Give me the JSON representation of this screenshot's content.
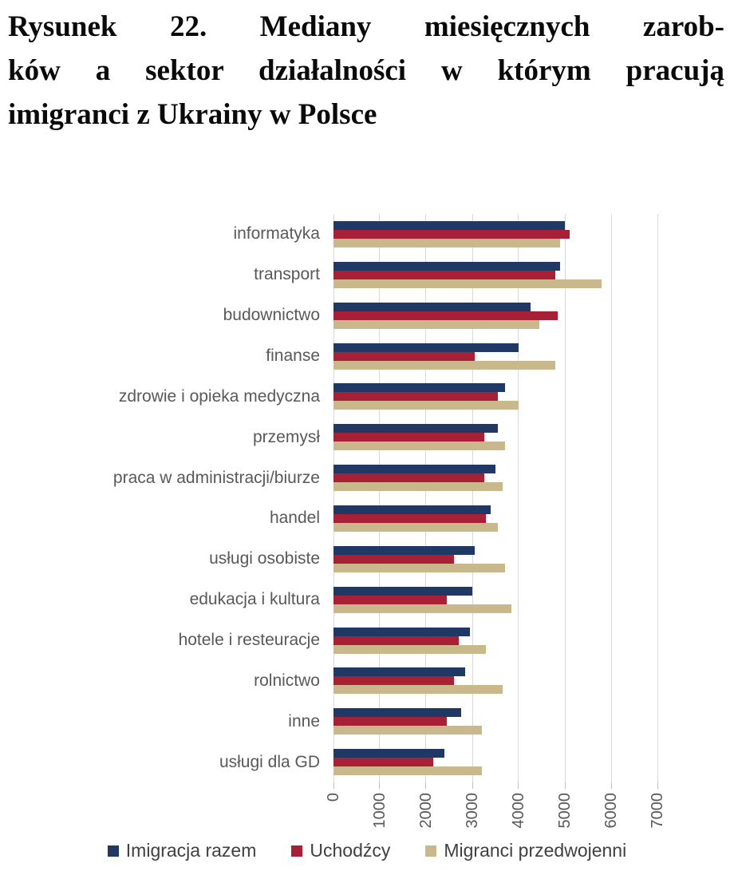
{
  "title_lines": [
    "Rysunek 22. Mediany miesięcznych zarob-",
    "ków a sektor działalności w którym pracują",
    "imigranci z Ukrainy w Polsce"
  ],
  "chart_data": {
    "type": "bar",
    "orientation": "horizontal",
    "title": "Mediany miesięcznych zarobków a sektor działalności w którym pracują imigranci z Ukrainy w Polsce",
    "categories": [
      "informatyka",
      "transport",
      "budownictwo",
      "finanse",
      "zdrowie i opieka medyczna",
      "przemysł",
      "praca w administracji/biurze",
      "handel",
      "usługi osobiste",
      "edukacja i kultura",
      "hotele i resteuracje",
      "rolnictwo",
      "inne",
      "usługi dla GD"
    ],
    "series": [
      {
        "name": "Imigracja razem",
        "color": "#1f3864",
        "values": [
          5000,
          4900,
          4250,
          4000,
          3700,
          3550,
          3500,
          3400,
          3050,
          3000,
          2950,
          2850,
          2750,
          2400
        ]
      },
      {
        "name": "Uchodźcy",
        "color": "#a72035",
        "values": [
          5100,
          4800,
          4850,
          3050,
          3550,
          3250,
          3250,
          3300,
          2600,
          2450,
          2700,
          2600,
          2450,
          2150
        ]
      },
      {
        "name": "Migranci przedwojenni",
        "color": "#c8b88b",
        "values": [
          4900,
          5800,
          4450,
          4800,
          4000,
          3700,
          3650,
          3550,
          3700,
          3850,
          3300,
          3650,
          3200,
          3200
        ]
      }
    ],
    "xlim": [
      0,
      7000
    ],
    "x_ticks": [
      0,
      1000,
      2000,
      3000,
      4000,
      5000,
      6000,
      7000
    ],
    "grid": "vertical",
    "legend_position": "bottom"
  },
  "colors": {
    "gridline": "#d9d9d9",
    "tick_mark": "#bfbfbf",
    "axis_text": "#595959",
    "category_text": "#595959",
    "legend_text": "#404040",
    "title_text": "#0a0a0a"
  }
}
